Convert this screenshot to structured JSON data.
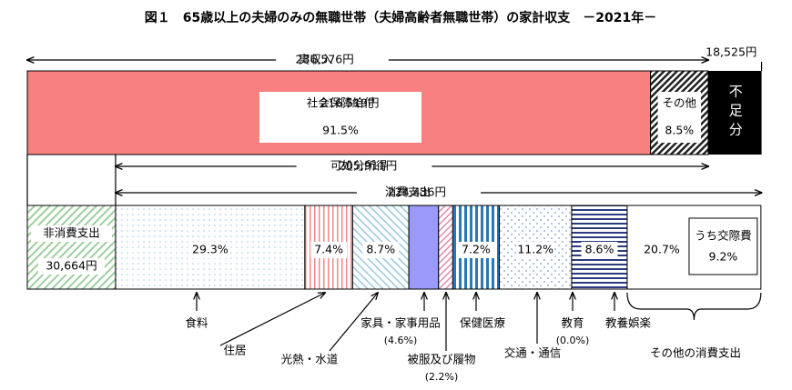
{
  "title": "図１　65歳以上の夫婦のみの無職世帯（夫婦高齢者無職世帯）の家計収支　－2021年－",
  "income": {
    "label": "実収入",
    "amount": {
      "value": 236576,
      "label": "236,576円"
    },
    "social_security": {
      "label": "社会保障給付",
      "amount": {
        "value": 216519,
        "label": "216,519円"
      },
      "share_label": "91.5%"
    },
    "other": {
      "label": "その他",
      "share_label": "8.5%"
    }
  },
  "deficit": {
    "label": "不足分",
    "amount": {
      "value": 18525,
      "label": "18,525円"
    }
  },
  "disposable_income": {
    "label": "可処分所得",
    "amount": {
      "value": 205911,
      "label": "205,911円"
    }
  },
  "non_consumption": {
    "label": "非消費支出",
    "amount": {
      "value": 30664,
      "label": "30,664円"
    }
  },
  "consumption": {
    "label": "消費支出",
    "amount": {
      "value": 224436,
      "label": "224,436円"
    },
    "items": [
      {
        "name": "食料",
        "share": 29.3,
        "share_label": "29.3%"
      },
      {
        "name": "住居",
        "share": 7.4,
        "share_label": "7.4%"
      },
      {
        "name": "光熱・水道",
        "share": 8.7,
        "share_label": "8.7%"
      },
      {
        "name": "家具・家事用品",
        "share": 4.6,
        "share_label": "(4.6%)"
      },
      {
        "name": "被服及び履物",
        "share": 2.2,
        "share_label": "(2.2%)"
      },
      {
        "name": "保健医療",
        "share": 7.2,
        "share_label": "7.2%"
      },
      {
        "name": "交通・通信",
        "share": 11.2,
        "share_label": "11.2%"
      },
      {
        "name": "教育",
        "share": 0.0,
        "share_label": "(0.0%)"
      },
      {
        "name": "教養娯楽",
        "share": 8.6,
        "share_label": "8.6%"
      },
      {
        "name": "その他の消費支出",
        "share": 20.7,
        "share_label": "20.7%"
      }
    ],
    "entertainment": {
      "label": "うち交際費",
      "share_label": "9.2%"
    }
  }
}
